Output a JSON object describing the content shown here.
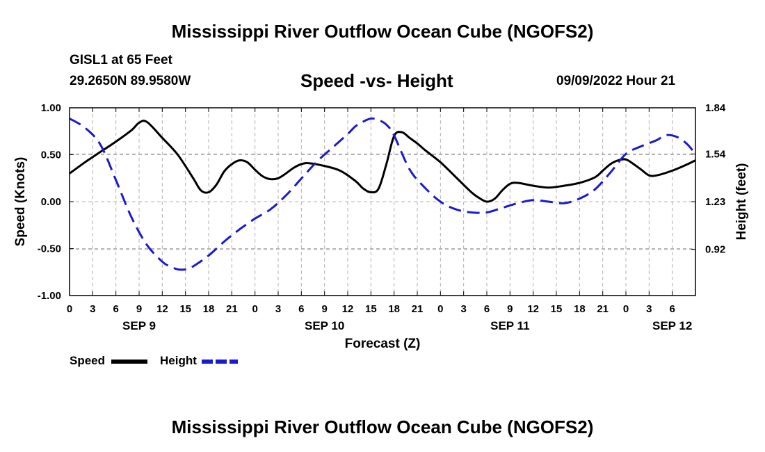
{
  "header": {
    "title": "Mississippi River Outflow Ocean Cube (NGOFS2)",
    "station": "GISL1 at 65 Feet",
    "coords": "29.2650N  89.9580W",
    "subtitle": "Speed -vs- Height",
    "datetime": "09/09/2022 Hour 21"
  },
  "footer": {
    "title": "Mississippi River Outflow Ocean Cube (NGOFS2)"
  },
  "legend": {
    "speed_label": "Speed",
    "height_label": "Height"
  },
  "colors": {
    "speed": "#000000",
    "height": "#1a1ad0",
    "grid": "#b0b0b0"
  },
  "chart_data": {
    "type": "line",
    "title": "Speed -vs- Height",
    "xlabel": "Forecast (Z)",
    "ylabel": "Speed (Knots)",
    "y2label": "Height (feet)",
    "xlim": [
      0,
      81
    ],
    "ylim": [
      -1.0,
      1.0
    ],
    "y2lim": [
      0.62,
      1.84
    ],
    "yticks": [
      "1.00",
      "0.50",
      "0.00",
      "-0.50",
      "-1.00"
    ],
    "y2ticks": [
      "1.84",
      "1.54",
      "1.23",
      "0.92"
    ],
    "y2tick_values": [
      1.84,
      1.54,
      1.23,
      0.92
    ],
    "x_tick_labels": [
      "0",
      "3",
      "6",
      "9",
      "12",
      "15",
      "18",
      "21",
      "0",
      "3",
      "6",
      "9",
      "12",
      "15",
      "18",
      "21",
      "0",
      "3",
      "6",
      "9",
      "12",
      "15",
      "18",
      "21",
      "0",
      "3",
      "6"
    ],
    "day_labels": [
      {
        "label": "SEP 9",
        "x": 9
      },
      {
        "label": "SEP 10",
        "x": 33
      },
      {
        "label": "SEP 11",
        "x": 57
      },
      {
        "label": "SEP 12",
        "x": 78
      }
    ],
    "grid": true,
    "series": [
      {
        "name": "Speed",
        "axis": "left",
        "style": "solid",
        "points": [
          [
            0,
            0.3
          ],
          [
            2,
            0.42
          ],
          [
            4,
            0.53
          ],
          [
            6,
            0.64
          ],
          [
            8,
            0.76
          ],
          [
            9,
            0.84
          ],
          [
            10,
            0.85
          ],
          [
            12,
            0.68
          ],
          [
            14,
            0.5
          ],
          [
            16,
            0.25
          ],
          [
            17,
            0.12
          ],
          [
            18,
            0.1
          ],
          [
            19,
            0.18
          ],
          [
            20,
            0.32
          ],
          [
            21,
            0.4
          ],
          [
            22,
            0.44
          ],
          [
            23,
            0.42
          ],
          [
            24,
            0.34
          ],
          [
            25,
            0.27
          ],
          [
            26,
            0.24
          ],
          [
            27,
            0.25
          ],
          [
            28,
            0.3
          ],
          [
            29,
            0.36
          ],
          [
            30,
            0.4
          ],
          [
            31,
            0.41
          ],
          [
            33,
            0.38
          ],
          [
            35,
            0.33
          ],
          [
            37,
            0.22
          ],
          [
            38,
            0.14
          ],
          [
            39,
            0.1
          ],
          [
            40,
            0.14
          ],
          [
            41,
            0.4
          ],
          [
            42,
            0.7
          ],
          [
            43,
            0.74
          ],
          [
            44,
            0.68
          ],
          [
            45,
            0.62
          ],
          [
            46,
            0.55
          ],
          [
            48,
            0.42
          ],
          [
            50,
            0.26
          ],
          [
            52,
            0.1
          ],
          [
            53,
            0.04
          ],
          [
            54,
            0.0
          ],
          [
            55,
            0.03
          ],
          [
            56,
            0.12
          ],
          [
            57,
            0.19
          ],
          [
            58,
            0.2
          ],
          [
            60,
            0.17
          ],
          [
            62,
            0.15
          ],
          [
            64,
            0.17
          ],
          [
            66,
            0.2
          ],
          [
            68,
            0.26
          ],
          [
            69,
            0.33
          ],
          [
            70,
            0.4
          ],
          [
            71,
            0.44
          ],
          [
            72,
            0.45
          ],
          [
            73,
            0.4
          ],
          [
            74,
            0.34
          ],
          [
            75,
            0.28
          ],
          [
            76,
            0.28
          ],
          [
            78,
            0.33
          ],
          [
            80,
            0.4
          ],
          [
            81,
            0.44
          ]
        ]
      },
      {
        "name": "Height",
        "axis": "right",
        "style": "dashed",
        "points": [
          [
            0,
            1.77
          ],
          [
            2,
            1.71
          ],
          [
            4,
            1.6
          ],
          [
            6,
            1.37
          ],
          [
            8,
            1.13
          ],
          [
            10,
            0.95
          ],
          [
            12,
            0.84
          ],
          [
            13,
            0.81
          ],
          [
            14,
            0.79
          ],
          [
            15,
            0.79
          ],
          [
            16,
            0.81
          ],
          [
            18,
            0.88
          ],
          [
            20,
            0.97
          ],
          [
            22,
            1.05
          ],
          [
            24,
            1.12
          ],
          [
            26,
            1.18
          ],
          [
            28,
            1.27
          ],
          [
            30,
            1.38
          ],
          [
            32,
            1.49
          ],
          [
            34,
            1.58
          ],
          [
            36,
            1.67
          ],
          [
            37,
            1.72
          ],
          [
            38,
            1.75
          ],
          [
            39,
            1.77
          ],
          [
            40,
            1.76
          ],
          [
            41,
            1.73
          ],
          [
            42,
            1.66
          ],
          [
            44,
            1.44
          ],
          [
            46,
            1.32
          ],
          [
            48,
            1.23
          ],
          [
            50,
            1.18
          ],
          [
            52,
            1.16
          ],
          [
            54,
            1.16
          ],
          [
            56,
            1.19
          ],
          [
            58,
            1.22
          ],
          [
            60,
            1.24
          ],
          [
            62,
            1.23
          ],
          [
            64,
            1.22
          ],
          [
            66,
            1.25
          ],
          [
            68,
            1.31
          ],
          [
            70,
            1.42
          ],
          [
            72,
            1.54
          ],
          [
            74,
            1.59
          ],
          [
            76,
            1.63
          ],
          [
            77,
            1.66
          ],
          [
            78,
            1.66
          ],
          [
            79,
            1.64
          ],
          [
            80,
            1.6
          ],
          [
            81,
            1.54
          ]
        ]
      }
    ]
  }
}
